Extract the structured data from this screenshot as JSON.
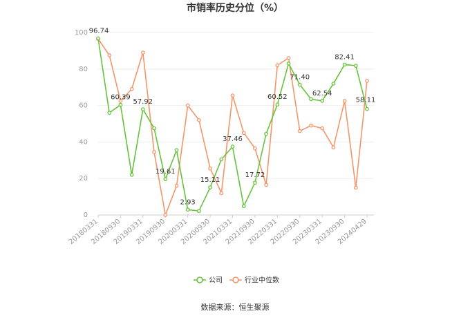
{
  "chart_data": {
    "type": "line",
    "title": "市销率历史分位（%）",
    "source": "数据来源：恒生聚源",
    "ylim": [
      0,
      100
    ],
    "yticks": [
      0,
      20,
      40,
      60,
      80,
      100
    ],
    "x_tick_labels": [
      "20180331",
      "20180930",
      "20190331",
      "20190930",
      "20200331",
      "20200930",
      "20210331",
      "20210930",
      "20220331",
      "20220930",
      "20230331",
      "20230930",
      "20240429"
    ],
    "legend_position": "bottom",
    "grid": true,
    "series": [
      {
        "name": "公司",
        "color": "#67c23a",
        "values": [
          96.74,
          56.0,
          60.39,
          22.0,
          57.92,
          47.5,
          19.61,
          35.5,
          2.93,
          2.2,
          15.11,
          30.5,
          37.46,
          4.8,
          17.72,
          44.5,
          60.52,
          83.0,
          71.4,
          63.5,
          62.54,
          72.0,
          82.41,
          81.8,
          58.11
        ]
      },
      {
        "name": "行业中位数",
        "color": "#f4956a",
        "values": [
          96.5,
          87.5,
          62.5,
          69.0,
          89.0,
          34.5,
          0.0,
          16.0,
          60.0,
          52.0,
          25.5,
          12.0,
          65.5,
          45.0,
          36.5,
          16.5,
          82.0,
          86.0,
          46.0,
          49.0,
          47.5,
          37.0,
          62.5,
          15.0,
          73.5
        ]
      }
    ],
    "data_labels": [
      {
        "index": 0,
        "text": "96.74"
      },
      {
        "index": 2,
        "text": "60.39"
      },
      {
        "index": 4,
        "text": "57.92"
      },
      {
        "index": 6,
        "text": "19.61"
      },
      {
        "index": 8,
        "text": "2.93"
      },
      {
        "index": 10,
        "text": "15.11"
      },
      {
        "index": 12,
        "text": "37.46"
      },
      {
        "index": 14,
        "text": "17.72"
      },
      {
        "index": 16,
        "text": "60.52"
      },
      {
        "index": 18,
        "text": "71.40"
      },
      {
        "index": 20,
        "text": "62.54"
      },
      {
        "index": 22,
        "text": "82.41"
      },
      {
        "index": 24,
        "text": "58.11"
      }
    ]
  }
}
